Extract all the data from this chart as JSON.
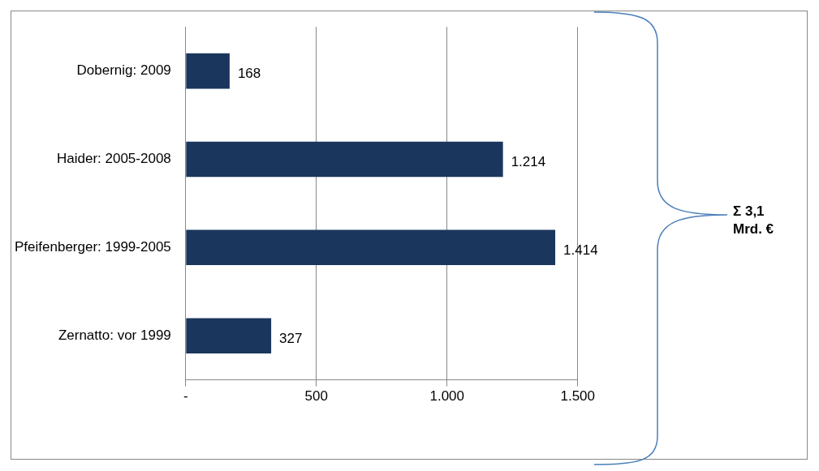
{
  "chart_data": {
    "type": "bar",
    "orientation": "horizontal",
    "categories": [
      "Dobernig: 2009",
      "Haider: 2005-2008",
      "Pfeifenberger: 1999-2005",
      "Zernatto: vor 1999"
    ],
    "values": [
      168,
      1214,
      1414,
      327
    ],
    "value_labels": [
      "168",
      "1.214",
      "1.414",
      "327"
    ],
    "color": "#1b365d",
    "xlim": [
      0,
      1500
    ],
    "xticks": [
      {
        "value": 0,
        "label": "-"
      },
      500,
      {
        "value": 1000,
        "label": "1.000"
      },
      {
        "value": 1500,
        "label": "1.500"
      }
    ],
    "grid": "x",
    "annotations": [
      "Σ 3,1 Mrd. €"
    ]
  }
}
